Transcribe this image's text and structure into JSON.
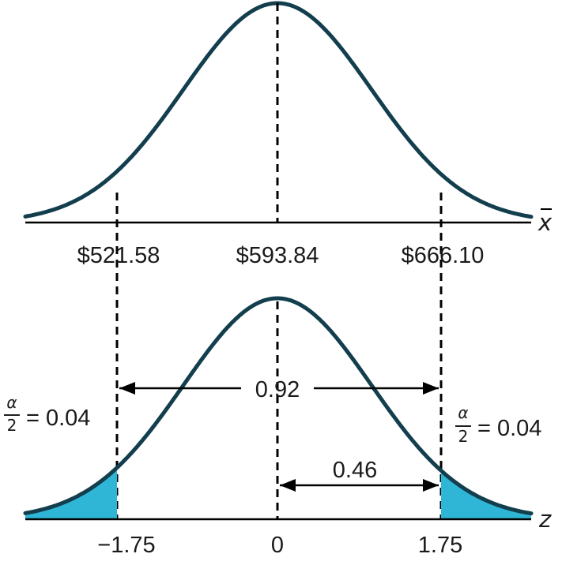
{
  "colors": {
    "curve": "#123e4d",
    "shade": "#2fb6d6",
    "ink": "#000000"
  },
  "top_axis": {
    "variable": "x",
    "ticks": [
      "$521.58",
      "$593.84",
      "$666.10"
    ]
  },
  "bottom_axis": {
    "variable": "z",
    "ticks": [
      "−1.75",
      "0",
      "1.75"
    ]
  },
  "annotations": {
    "middle_area": "0.92",
    "half_width_area": "0.46",
    "left_tail": {
      "numerator": "α",
      "denominator": "2",
      "value": "= 0.04"
    },
    "right_tail": {
      "numerator": "α",
      "denominator": "2",
      "value": "= 0.04"
    }
  }
}
